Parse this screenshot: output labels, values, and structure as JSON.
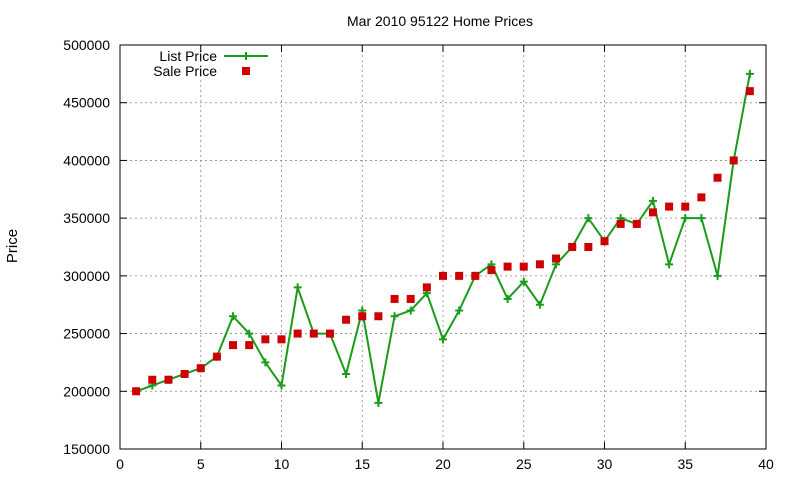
{
  "chart_data": {
    "type": "line",
    "title": "Mar 2010 95122 Home Prices",
    "xlabel": "",
    "ylabel": "Price",
    "xlim": [
      0,
      40
    ],
    "ylim": [
      150000,
      500000
    ],
    "xticks": [
      0,
      5,
      10,
      15,
      20,
      25,
      30,
      35,
      40
    ],
    "yticks": [
      150000,
      200000,
      250000,
      300000,
      350000,
      400000,
      450000,
      500000
    ],
    "grid": true,
    "legend_position": "top-left",
    "series": [
      {
        "name": "List Price",
        "style": "lines+crosses",
        "color": "#1a9c1a",
        "x": [
          1,
          2,
          3,
          4,
          5,
          6,
          7,
          8,
          9,
          10,
          11,
          12,
          13,
          14,
          15,
          16,
          17,
          18,
          19,
          20,
          21,
          22,
          23,
          24,
          25,
          26,
          27,
          28,
          29,
          30,
          31,
          32,
          33,
          34,
          35,
          36,
          37,
          38,
          39
        ],
        "y": [
          200000,
          205000,
          210000,
          215000,
          220000,
          230000,
          265000,
          250000,
          225000,
          205000,
          290000,
          250000,
          250000,
          215000,
          270000,
          190000,
          265000,
          270000,
          285000,
          245000,
          270000,
          300000,
          310000,
          280000,
          295000,
          275000,
          310000,
          325000,
          350000,
          330000,
          350000,
          345000,
          365000,
          310000,
          350000,
          350000,
          300000,
          400000,
          475000
        ]
      },
      {
        "name": "Sale Price",
        "style": "squares",
        "color": "#cc0000",
        "x": [
          1,
          2,
          3,
          4,
          5,
          6,
          7,
          8,
          9,
          10,
          11,
          12,
          13,
          14,
          15,
          16,
          17,
          18,
          19,
          20,
          21,
          22,
          23,
          24,
          25,
          26,
          27,
          28,
          29,
          30,
          31,
          32,
          33,
          34,
          35,
          36,
          37,
          38,
          39
        ],
        "y": [
          200000,
          210000,
          210000,
          215000,
          220000,
          230000,
          240000,
          240000,
          245000,
          245000,
          250000,
          250000,
          250000,
          262000,
          265000,
          265000,
          280000,
          280000,
          290000,
          300000,
          300000,
          300000,
          305000,
          308000,
          308000,
          310000,
          315000,
          325000,
          325000,
          330000,
          345000,
          345000,
          355000,
          360000,
          360000,
          368000,
          385000,
          400000,
          460000
        ]
      }
    ]
  }
}
